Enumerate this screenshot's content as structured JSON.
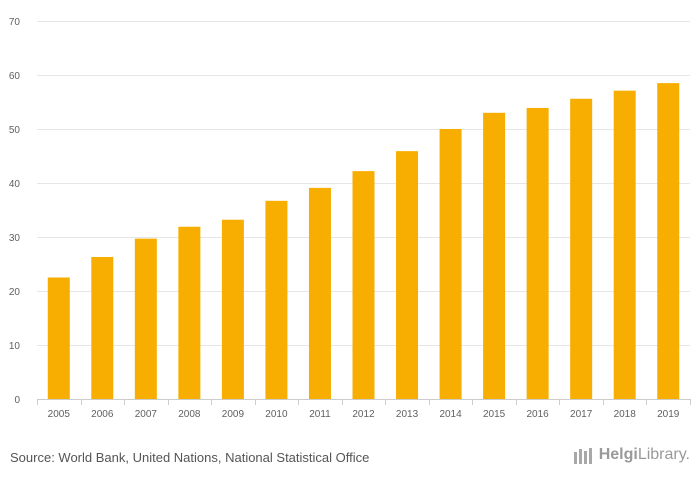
{
  "chart_data": {
    "type": "bar",
    "title": "",
    "xlabel": "",
    "ylabel": "",
    "categories": [
      "2005",
      "2006",
      "2007",
      "2008",
      "2009",
      "2010",
      "2011",
      "2012",
      "2013",
      "2014",
      "2015",
      "2016",
      "2017",
      "2018",
      "2019"
    ],
    "values": [
      22.5,
      26.3,
      29.7,
      31.9,
      33.2,
      36.7,
      39.1,
      42.2,
      45.9,
      50.0,
      53.0,
      53.9,
      55.6,
      57.1,
      58.5
    ],
    "ylim": [
      0,
      70
    ],
    "yticks": [
      0,
      10,
      20,
      30,
      40,
      50,
      60,
      70
    ],
    "grid": true,
    "bar_color": "#f7ae00"
  },
  "footer": {
    "source": "Source: World Bank, United Nations, National Statistical Office",
    "logo_part1": "Helgi",
    "logo_part2": "Library."
  },
  "colors": {
    "bar": "#f7ae00",
    "grid": "#e6e6e6",
    "axis": "#cccccc",
    "text": "#606060"
  }
}
